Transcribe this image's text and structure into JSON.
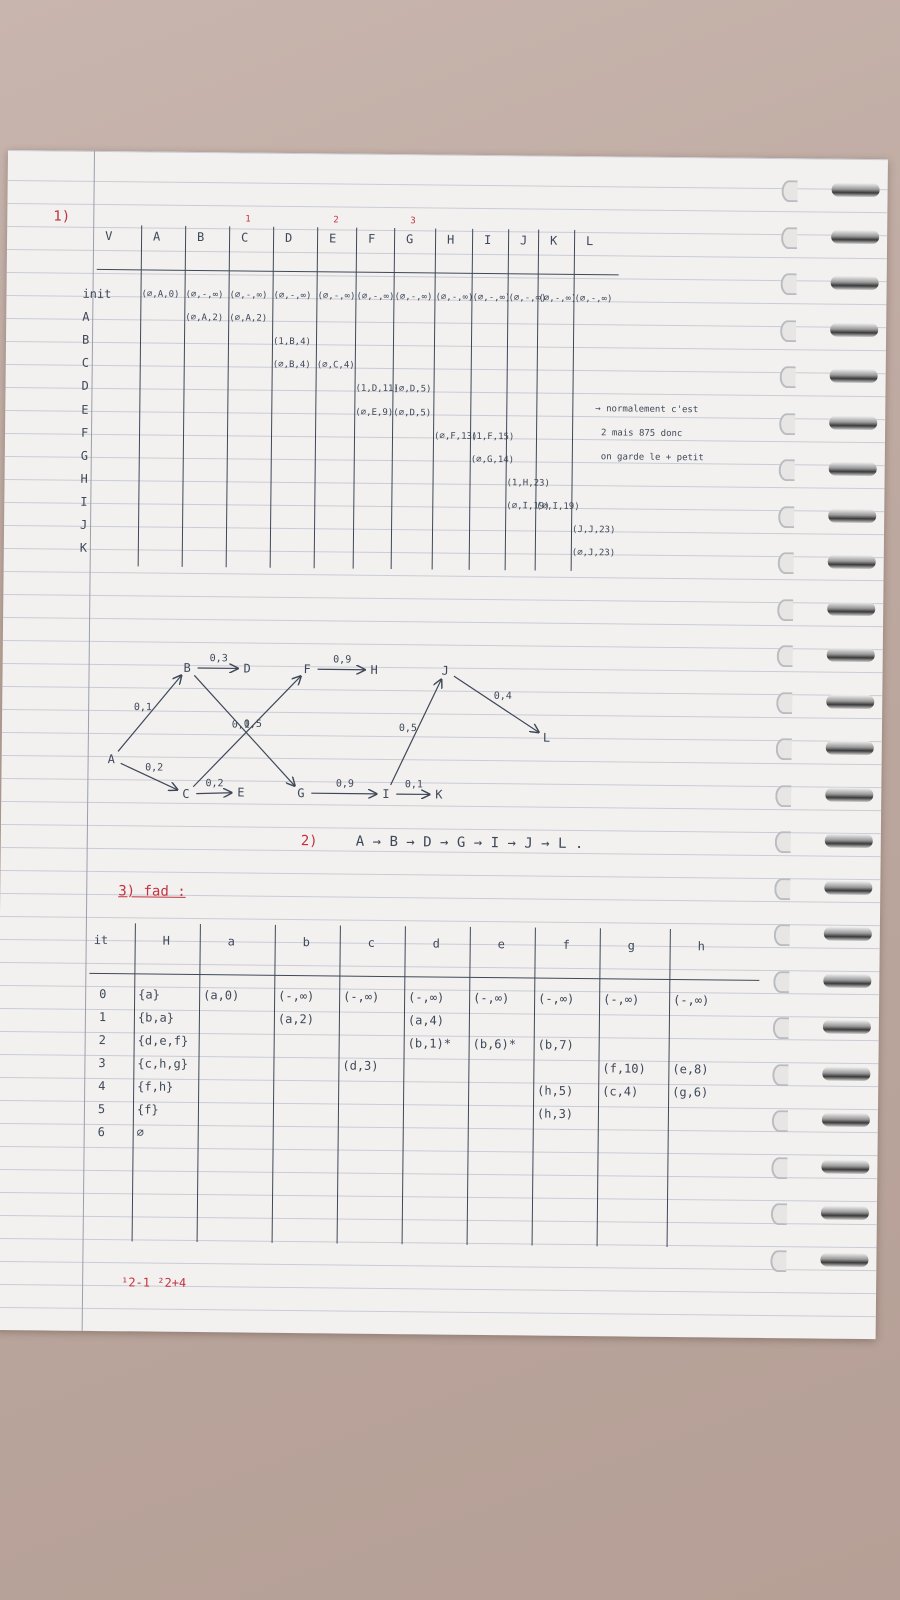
{
  "section1": {
    "marker": "1)",
    "table": {
      "corner": "V",
      "columns": [
        "A",
        "B",
        "C",
        "D",
        "E",
        "F",
        "G",
        "H",
        "I",
        "J",
        "K",
        "L"
      ],
      "rows": [
        {
          "label": "init",
          "cells": [
            "(∅,A,0)",
            "(∅,-,∞)",
            "(∅,-,∞)",
            "(∅,-,∞)",
            "(∅,-,∞)",
            "(∅,-,∞)",
            "(∅,-,∞)",
            "(∅,-,∞)",
            "(∅,-,∞)",
            "(∅,-,∞)",
            "(∅,-,∞)",
            "(∅,-,∞)"
          ]
        },
        {
          "label": "A",
          "cells": [
            "",
            "(∅,A,2)",
            "(∅,A,2)",
            "",
            "",
            "",
            "",
            "",
            "",
            "",
            "",
            ""
          ]
        },
        {
          "label": "B",
          "cells": [
            "",
            "",
            "",
            "(1,B,4)",
            "",
            "",
            "",
            "",
            "",
            "",
            "",
            ""
          ]
        },
        {
          "label": "C",
          "cells": [
            "",
            "",
            "",
            "(∅,B,4)",
            "(∅,C,4)",
            "",
            "",
            "",
            "",
            "",
            "",
            ""
          ]
        },
        {
          "label": "D",
          "cells": [
            "",
            "",
            "",
            "",
            "",
            "(1,D,11)",
            "(∅,D,5)",
            "",
            "",
            "",
            "",
            ""
          ]
        },
        {
          "label": "E",
          "cells": [
            "",
            "",
            "",
            "",
            "",
            "(∅,E,9)",
            "(∅,D,5)",
            "",
            "",
            "",
            "",
            ""
          ]
        },
        {
          "label": "F",
          "cells": [
            "",
            "",
            "",
            "",
            "",
            "",
            "",
            "(∅,F,13)",
            "(1,F,15)",
            "",
            "",
            ""
          ]
        },
        {
          "label": "G",
          "cells": [
            "",
            "",
            "",
            "",
            "",
            "",
            "",
            "",
            "(∅,G,14)",
            "",
            "",
            ""
          ]
        },
        {
          "label": "H",
          "cells": [
            "",
            "",
            "",
            "",
            "",
            "",
            "",
            "",
            "",
            "(1,H,23)",
            "",
            ""
          ]
        },
        {
          "label": "I",
          "cells": [
            "",
            "",
            "",
            "",
            "",
            "",
            "",
            "",
            "",
            "(∅,I,19)",
            "(∅,I,19)",
            ""
          ]
        },
        {
          "label": "J",
          "cells": [
            "",
            "",
            "",
            "",
            "",
            "",
            "",
            "",
            "",
            "",
            "",
            "(J,J,23)"
          ]
        },
        {
          "label": "K",
          "cells": [
            "",
            "",
            "",
            "",
            "",
            "",
            "",
            "",
            "",
            "",
            "",
            "(∅,J,23)"
          ]
        }
      ],
      "column_marks": {
        "C": "1",
        "E": "2",
        "G": "3"
      }
    },
    "side_note": [
      "→ normalement c'est",
      "2 mais 875 donc",
      "on garde le + petit"
    ]
  },
  "graph": {
    "nodes": [
      "A",
      "B",
      "C",
      "D",
      "E",
      "F",
      "G",
      "H",
      "I",
      "J",
      "K",
      "L"
    ],
    "edges": [
      {
        "from": "A",
        "to": "B",
        "label": "0,1"
      },
      {
        "from": "A",
        "to": "C",
        "label": "0,2"
      },
      {
        "from": "B",
        "to": "D",
        "label": "0,3"
      },
      {
        "from": "C",
        "to": "E",
        "label": "0,2"
      },
      {
        "from": "B",
        "to": "G",
        "label": "0,5"
      },
      {
        "from": "C",
        "to": "F",
        "label": "0,1"
      },
      {
        "from": "F",
        "to": "H",
        "label": "0,9"
      },
      {
        "from": "G",
        "to": "I",
        "label": "0,9"
      },
      {
        "from": "I",
        "to": "J",
        "label": "0,5"
      },
      {
        "from": "I",
        "to": "K",
        "label": "0,1"
      },
      {
        "from": "J",
        "to": "L",
        "label": "0,4"
      }
    ]
  },
  "section2": {
    "marker": "2)",
    "path": "A → B → D → G → I → J → L ."
  },
  "section3": {
    "title": "3) fad :",
    "table": {
      "headers": [
        "it",
        "H",
        "a",
        "b",
        "c",
        "d",
        "e",
        "f",
        "g",
        "h"
      ],
      "rows": [
        [
          "0",
          "{a}",
          "(a,0)",
          "(-,∞)",
          "(-,∞)",
          "(-,∞)",
          "(-,∞)",
          "(-,∞)",
          "(-,∞)",
          "(-,∞)"
        ],
        [
          "1",
          "{b,a}",
          "",
          "(a,2)",
          "",
          "(a,4)",
          "",
          "",
          "",
          ""
        ],
        [
          "2",
          "{d,e,f}",
          "",
          "",
          "",
          "(b,1)*",
          "(b,6)*",
          "(b,7)",
          "",
          ""
        ],
        [
          "3",
          "{c,h,g}",
          "",
          "",
          "(d,3)",
          "",
          "",
          "",
          "(f,10)",
          "(e,8)"
        ],
        [
          "4",
          "{f,h}",
          "",
          "",
          "",
          "",
          "",
          "(h,5)",
          "(c,4)",
          "(g,6)"
        ],
        [
          "5",
          "{f}",
          "",
          "",
          "",
          "",
          "",
          "(h,3)",
          "",
          ""
        ],
        [
          "6",
          "∅",
          "",
          "",
          "",
          "",
          "",
          "",
          "",
          ""
        ]
      ]
    },
    "footnote": "¹2-1  ²2+4"
  }
}
